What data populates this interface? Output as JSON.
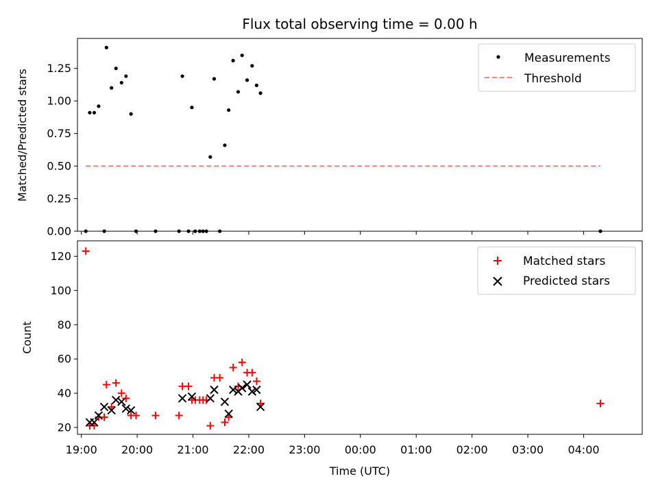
{
  "figure": {
    "title": "Flux total observing time = 0.00 h"
  },
  "x_axis": {
    "label": "Time (UTC)",
    "ticks": [
      {
        "value": 19.0,
        "label": "19:00"
      },
      {
        "value": 20.0,
        "label": "20:00"
      },
      {
        "value": 21.0,
        "label": "21:00"
      },
      {
        "value": 22.0,
        "label": "22:00"
      },
      {
        "value": 23.0,
        "label": "23:00"
      },
      {
        "value": 24.0,
        "label": "00:00"
      },
      {
        "value": 25.0,
        "label": "01:00"
      },
      {
        "value": 26.0,
        "label": "02:00"
      },
      {
        "value": 27.0,
        "label": "03:00"
      },
      {
        "value": 28.0,
        "label": "04:00"
      }
    ],
    "range": [
      18.93,
      29.05
    ]
  },
  "chart_data": [
    {
      "type": "scatter",
      "ylabel": "Matched/Predicted stars",
      "ylim": [
        0,
        1.48
      ],
      "yticks": [
        {
          "value": 0.0,
          "label": "0.00"
        },
        {
          "value": 0.25,
          "label": "0.25"
        },
        {
          "value": 0.5,
          "label": "0.50"
        },
        {
          "value": 0.75,
          "label": "0.75"
        },
        {
          "value": 1.0,
          "label": "1.00"
        },
        {
          "value": 1.25,
          "label": "1.25"
        }
      ],
      "legend": "top-right",
      "series": [
        {
          "name": "Measurements",
          "marker": "dot",
          "color": "#000000",
          "x": [
            19.08,
            19.15,
            19.23,
            19.31,
            19.41,
            19.45,
            19.54,
            19.62,
            19.72,
            19.8,
            19.89,
            19.98,
            20.33,
            20.75,
            20.81,
            20.92,
            20.98,
            21.04,
            21.12,
            21.18,
            21.24,
            21.31,
            21.38,
            21.48,
            21.57,
            21.64,
            21.72,
            21.81,
            21.88,
            21.97,
            22.06,
            22.14,
            22.21,
            28.3
          ],
          "y": [
            0.0,
            0.91,
            0.91,
            0.96,
            0.0,
            1.41,
            1.1,
            1.25,
            1.14,
            1.19,
            0.9,
            0.0,
            0.0,
            0.0,
            1.19,
            0.0,
            0.95,
            0.0,
            0.0,
            0.0,
            0.0,
            0.57,
            1.17,
            0.0,
            0.66,
            0.93,
            1.31,
            1.07,
            1.35,
            1.16,
            1.27,
            1.12,
            1.06,
            0.0
          ]
        },
        {
          "name": "Threshold",
          "marker": "dashed-line",
          "color": "#ff7f7f",
          "x": [
            19.08,
            28.3
          ],
          "y": [
            0.5,
            0.5
          ]
        }
      ]
    },
    {
      "type": "scatter",
      "ylabel": "Count",
      "ylim": [
        16,
        129
      ],
      "yticks": [
        {
          "value": 20,
          "label": "20"
        },
        {
          "value": 40,
          "label": "40"
        },
        {
          "value": 60,
          "label": "60"
        },
        {
          "value": 80,
          "label": "80"
        },
        {
          "value": 100,
          "label": "100"
        },
        {
          "value": 120,
          "label": "120"
        }
      ],
      "legend": "top-right",
      "series": [
        {
          "name": "Matched stars",
          "marker": "plus",
          "color": "#ff0000",
          "x": [
            19.08,
            19.15,
            19.23,
            19.31,
            19.41,
            19.45,
            19.54,
            19.62,
            19.72,
            19.8,
            19.89,
            19.98,
            20.33,
            20.75,
            20.81,
            20.92,
            20.98,
            21.04,
            21.12,
            21.18,
            21.24,
            21.31,
            21.38,
            21.48,
            21.57,
            21.64,
            21.72,
            21.81,
            21.88,
            21.97,
            22.06,
            22.14,
            22.21,
            28.3
          ],
          "y": [
            123,
            21,
            21,
            26,
            26,
            45,
            32,
            46,
            40,
            37,
            27,
            27,
            27,
            27,
            44,
            44,
            36,
            36,
            36,
            36,
            36,
            21,
            49,
            49,
            23,
            26,
            55,
            44,
            58,
            52,
            52,
            47,
            34,
            34
          ]
        },
        {
          "name": "Predicted stars",
          "marker": "x",
          "color": "#000000",
          "x": [
            19.15,
            19.23,
            19.31,
            19.41,
            19.54,
            19.62,
            19.72,
            19.8,
            19.89,
            20.81,
            20.98,
            21.31,
            21.38,
            21.57,
            21.64,
            21.72,
            21.81,
            21.88,
            21.97,
            22.06,
            22.14,
            22.21
          ],
          "y": [
            23,
            23,
            27,
            32,
            30,
            36,
            35,
            31,
            30,
            37,
            38,
            37,
            42,
            35,
            28,
            42,
            41,
            43,
            45,
            41,
            42,
            32
          ]
        }
      ]
    }
  ]
}
